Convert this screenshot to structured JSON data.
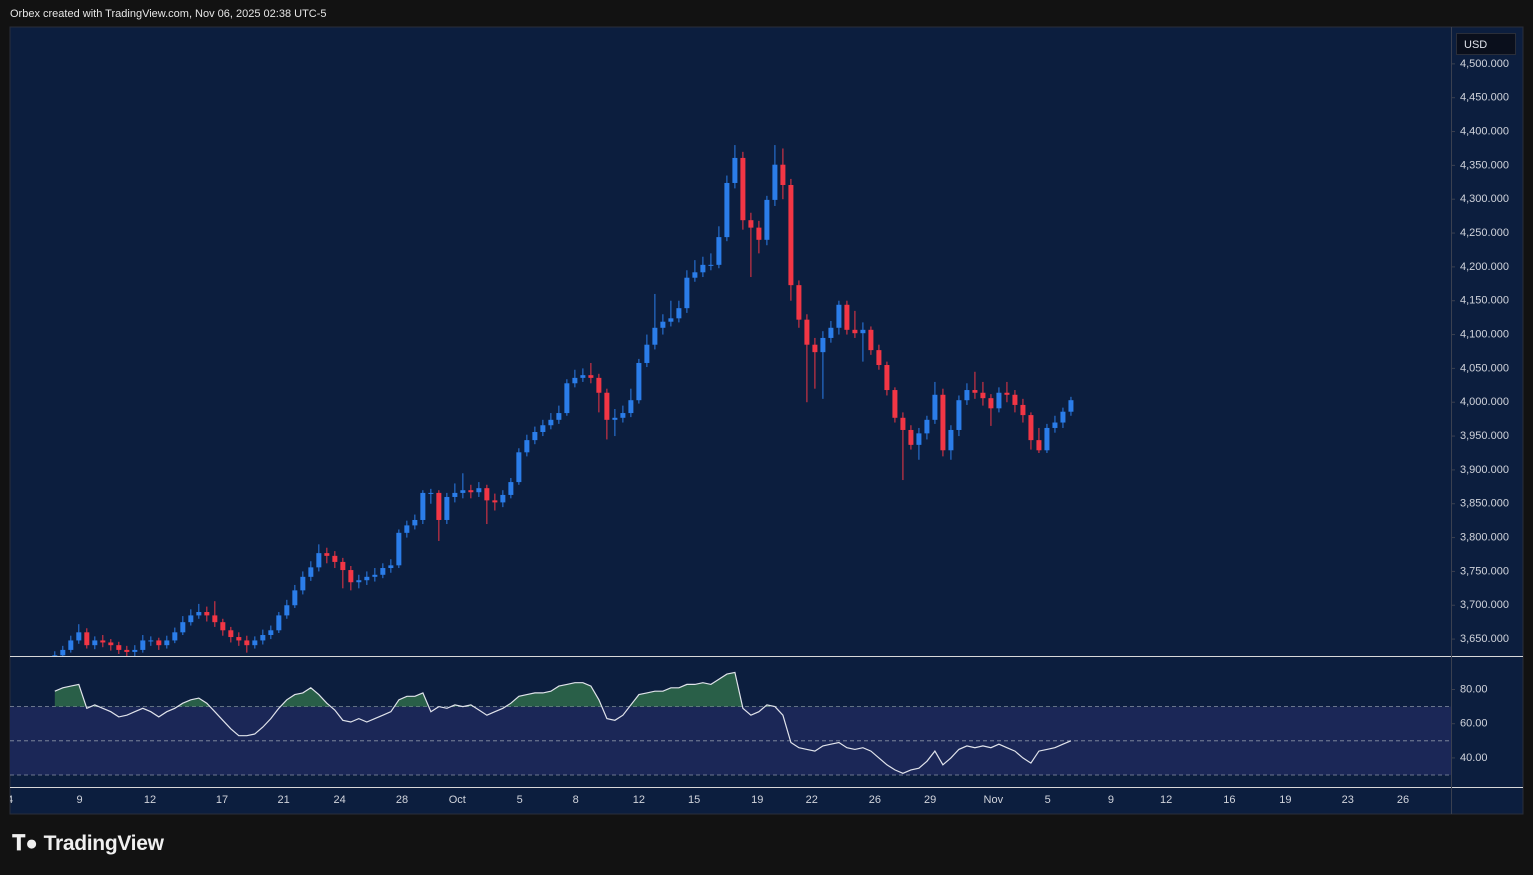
{
  "header": {
    "attribution": "Orbex created with TradingView.com, Nov 06, 2025 02:38 UTC-5",
    "currency": "USD",
    "logo": "TradingView"
  },
  "chart_data": [
    {
      "type": "candlestick",
      "up_color": "#2b7de9",
      "down_color": "#f23645",
      "open": [
        3620,
        3626,
        3634,
        3648,
        3660,
        3641,
        3648,
        3645,
        3641,
        3634,
        3631,
        3634,
        3648,
        3648,
        3641,
        3648,
        3660,
        3675,
        3685,
        3690,
        3685,
        3675,
        3663,
        3653,
        3648,
        3641,
        3648,
        3656,
        3663,
        3685,
        3700,
        3722,
        3742,
        3756,
        3777,
        3773,
        3764,
        3752,
        3734,
        3737,
        3742,
        3745,
        3755,
        3759,
        3807,
        3818,
        3826,
        3866,
        3866,
        3826,
        3860,
        3866,
        3870,
        3867,
        3873,
        3855,
        3852,
        3863,
        3882,
        3926,
        3944,
        3956,
        3966,
        3974,
        3984,
        4028,
        4036,
        4040,
        4036,
        4014,
        3974,
        3977,
        3984,
        4003,
        4058,
        4085,
        4110,
        4119,
        4124,
        4139,
        4184,
        4192,
        4203,
        4203,
        4244,
        4324,
        4361,
        4269,
        4258,
        4240,
        4299,
        4351,
        4321,
        4173,
        4122,
        4085,
        4074,
        4095,
        4110,
        4144,
        4107,
        4102,
        4107,
        4077,
        4055,
        4018,
        3977,
        3959,
        3937,
        3954,
        3974,
        4011,
        3929,
        3959,
        4003,
        4018,
        4014,
        4006,
        3991,
        4014,
        4011,
        3996,
        3981,
        3944,
        3929,
        3962,
        3970,
        3986
      ],
      "high": [
        3632,
        3640,
        3655,
        3672,
        3666,
        3654,
        3656,
        3650,
        3646,
        3640,
        3641,
        3656,
        3654,
        3652,
        3655,
        3667,
        3684,
        3694,
        3702,
        3698,
        3706,
        3680,
        3668,
        3660,
        3655,
        3654,
        3664,
        3670,
        3690,
        3708,
        3730,
        3750,
        3765,
        3790,
        3785,
        3780,
        3770,
        3758,
        3745,
        3750,
        3755,
        3762,
        3768,
        3812,
        3825,
        3834,
        3870,
        3872,
        3870,
        3866,
        3880,
        3895,
        3878,
        3882,
        3878,
        3865,
        3870,
        3888,
        3932,
        3952,
        3964,
        3974,
        3984,
        3995,
        4034,
        4048,
        4050,
        4058,
        4042,
        4020,
        3990,
        3995,
        4020,
        4064,
        4100,
        4160,
        4130,
        4150,
        4150,
        4195,
        4210,
        4215,
        4220,
        4260,
        4335,
        4380,
        4370,
        4280,
        4268,
        4305,
        4380,
        4375,
        4330,
        4180,
        4130,
        4095,
        4105,
        4120,
        4150,
        4150,
        4135,
        4118,
        4112,
        4085,
        4060,
        4022,
        3985,
        3966,
        3962,
        3980,
        4030,
        4020,
        3966,
        4010,
        4028,
        4045,
        4030,
        4012,
        4022,
        4030,
        4018,
        4005,
        3985,
        3962,
        3968,
        3980,
        3992,
        4008
      ],
      "low": [
        3615,
        3621,
        3630,
        3643,
        3636,
        3635,
        3638,
        3633,
        3628,
        3622,
        3625,
        3630,
        3640,
        3634,
        3636,
        3644,
        3656,
        3670,
        3680,
        3676,
        3668,
        3655,
        3645,
        3640,
        3630,
        3636,
        3642,
        3650,
        3659,
        3680,
        3696,
        3716,
        3736,
        3750,
        3762,
        3755,
        3725,
        3722,
        3725,
        3730,
        3735,
        3740,
        3748,
        3755,
        3800,
        3812,
        3820,
        3850,
        3795,
        3820,
        3852,
        3858,
        3858,
        3860,
        3820,
        3840,
        3845,
        3858,
        3878,
        3920,
        3938,
        3950,
        3960,
        3968,
        3980,
        4022,
        4030,
        4028,
        3985,
        3945,
        3950,
        3970,
        3978,
        3998,
        4052,
        4078,
        4100,
        4112,
        4118,
        4132,
        4178,
        4185,
        4195,
        4198,
        4238,
        4316,
        4255,
        4185,
        4220,
        4232,
        4290,
        4300,
        4150,
        4110,
        4000,
        4020,
        4005,
        4088,
        4100,
        4100,
        4095,
        4060,
        4070,
        4048,
        4010,
        3970,
        3885,
        3930,
        3915,
        3945,
        3968,
        3920,
        3915,
        3950,
        3996,
        4005,
        3995,
        3965,
        3985,
        4000,
        3985,
        3970,
        3930,
        3925,
        3925,
        3955,
        3962,
        3980
      ],
      "close": [
        3626,
        3634,
        3648,
        3660,
        3641,
        3648,
        3645,
        3641,
        3634,
        3631,
        3634,
        3648,
        3648,
        3641,
        3648,
        3660,
        3675,
        3685,
        3690,
        3685,
        3675,
        3663,
        3653,
        3648,
        3641,
        3648,
        3656,
        3663,
        3685,
        3700,
        3722,
        3742,
        3756,
        3777,
        3773,
        3764,
        3752,
        3734,
        3737,
        3742,
        3745,
        3755,
        3759,
        3807,
        3818,
        3826,
        3866,
        3866,
        3826,
        3860,
        3866,
        3870,
        3867,
        3873,
        3855,
        3852,
        3863,
        3882,
        3926,
        3944,
        3956,
        3966,
        3974,
        3984,
        4028,
        4036,
        4040,
        4036,
        4014,
        3974,
        3977,
        3984,
        4003,
        4058,
        4085,
        4110,
        4119,
        4124,
        4139,
        4184,
        4192,
        4203,
        4203,
        4244,
        4324,
        4361,
        4269,
        4258,
        4240,
        4299,
        4351,
        4321,
        4173,
        4122,
        4085,
        4074,
        4095,
        4110,
        4144,
        4107,
        4102,
        4107,
        4077,
        4055,
        4018,
        3977,
        3959,
        3937,
        3954,
        3974,
        4011,
        3929,
        3959,
        4003,
        4018,
        4014,
        4006,
        3991,
        4014,
        4011,
        3996,
        3981,
        3944,
        3929,
        3962,
        3970,
        3986,
        4003
      ],
      "ylim": [
        3625,
        4553
      ],
      "yticks": [
        {
          "value": 3650,
          "label": "3,650.000"
        },
        {
          "value": 3700,
          "label": "3,700.000"
        },
        {
          "value": 3750,
          "label": "3,750.000"
        },
        {
          "value": 3800,
          "label": "3,800.000"
        },
        {
          "value": 3850,
          "label": "3,850.000"
        },
        {
          "value": 3900,
          "label": "3,900.000"
        },
        {
          "value": 3950,
          "label": "3,950.000"
        },
        {
          "value": 4000,
          "label": "4,000.000"
        },
        {
          "value": 4050,
          "label": "4,050.000"
        },
        {
          "value": 4100,
          "label": "4,100.000"
        },
        {
          "value": 4150,
          "label": "4,150.000"
        },
        {
          "value": 4200,
          "label": "4,200.000"
        },
        {
          "value": 4250,
          "label": "4,250.000"
        },
        {
          "value": 4300,
          "label": "4,300.000"
        },
        {
          "value": 4350,
          "label": "4,350.000"
        },
        {
          "value": 4400,
          "label": "4,400.000"
        },
        {
          "value": 4450,
          "label": "4,450.000"
        },
        {
          "value": 4500,
          "label": "4,500.000"
        }
      ],
      "xlim": [
        -5.6,
        174.5
      ],
      "xticks": [
        {
          "value": -5.6,
          "label": "4"
        },
        {
          "value": 3.1,
          "label": "9"
        },
        {
          "value": 11.9,
          "label": "12"
        },
        {
          "value": 20.9,
          "label": "17"
        },
        {
          "value": 28.6,
          "label": "21"
        },
        {
          "value": 35.6,
          "label": "24"
        },
        {
          "value": 43.4,
          "label": "28"
        },
        {
          "value": 50.3,
          "label": "Oct"
        },
        {
          "value": 58.1,
          "label": "5"
        },
        {
          "value": 65.1,
          "label": "8"
        },
        {
          "value": 73,
          "label": "12"
        },
        {
          "value": 79.9,
          "label": "15"
        },
        {
          "value": 87.8,
          "label": "19"
        },
        {
          "value": 94.6,
          "label": "22"
        },
        {
          "value": 102.5,
          "label": "26"
        },
        {
          "value": 109.4,
          "label": "29"
        },
        {
          "value": 117.3,
          "label": "Nov"
        },
        {
          "value": 124.1,
          "label": "5"
        },
        {
          "value": 132,
          "label": "9"
        },
        {
          "value": 138.9,
          "label": "12"
        },
        {
          "value": 146.8,
          "label": "16"
        },
        {
          "value": 153.8,
          "label": "19"
        },
        {
          "value": 161.6,
          "label": "23"
        },
        {
          "value": 168.5,
          "label": "26"
        }
      ]
    },
    {
      "type": "line",
      "color": "#e0e3eb",
      "fill_color": "#2f6b4a",
      "band_color": "#1b2757",
      "values": [
        79,
        81,
        82,
        83,
        69,
        71,
        69,
        67,
        64,
        65,
        67,
        69,
        67,
        64,
        67,
        69,
        72,
        74,
        75,
        72,
        67,
        62,
        57,
        53,
        53,
        54,
        58,
        63,
        69,
        74,
        77,
        78,
        81,
        77,
        72,
        68,
        62,
        61,
        63,
        61,
        63,
        65,
        67,
        74,
        76,
        76,
        78,
        67,
        70,
        69,
        71,
        70,
        71,
        68,
        65,
        67,
        69,
        72,
        76,
        77,
        78,
        78,
        79,
        82,
        83,
        84,
        84,
        82,
        74,
        63,
        62,
        65,
        71,
        77,
        78,
        79,
        79,
        81,
        81,
        83,
        83,
        84,
        83,
        86,
        89,
        90,
        69,
        65,
        67,
        71,
        70,
        65,
        49,
        46,
        45,
        44,
        47,
        48,
        49,
        46,
        45,
        46,
        44,
        40,
        36,
        33,
        31,
        33,
        34,
        38,
        44,
        36,
        40,
        45,
        47,
        46,
        47,
        46,
        48,
        46,
        44,
        40,
        37,
        44,
        45,
        46,
        48,
        50
      ],
      "levels": [
        70,
        50,
        30
      ],
      "ylim": [
        23,
        99
      ],
      "yticks": [
        {
          "value": 80,
          "label": "80.00"
        },
        {
          "value": 60,
          "label": "60.00"
        },
        {
          "value": 40,
          "label": "40.00"
        }
      ]
    }
  ]
}
